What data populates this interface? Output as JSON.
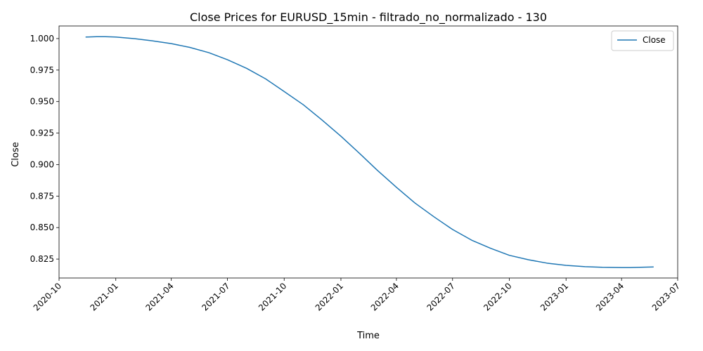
{
  "chart_data": {
    "type": "line",
    "title": "Close Prices for EURUSD_15min - filtrado_no_normalizado - 130",
    "xlabel": "Time",
    "ylabel": "Close",
    "xlim": [
      "2020-10-01",
      "2023-07-01"
    ],
    "ylim": [
      0.81,
      1.01
    ],
    "x_ticks": [
      "2020-10",
      "2021-01",
      "2021-04",
      "2021-07",
      "2021-10",
      "2022-01",
      "2022-04",
      "2022-07",
      "2022-10",
      "2023-01",
      "2023-04",
      "2023-07"
    ],
    "y_ticks": [
      "0.825",
      "0.850",
      "0.875",
      "0.900",
      "0.925",
      "0.950",
      "0.975",
      "1.000"
    ],
    "legend_position": "top-right",
    "grid": false,
    "series": [
      {
        "name": "Close",
        "color": "#1f77b4",
        "x": [
          "2020-11-13",
          "2020-12-01",
          "2020-12-15",
          "2021-01-01",
          "2021-02-01",
          "2021-03-01",
          "2021-04-01",
          "2021-05-01",
          "2021-06-01",
          "2021-07-01",
          "2021-08-01",
          "2021-09-01",
          "2021-10-01",
          "2021-11-01",
          "2021-12-01",
          "2022-01-01",
          "2022-02-01",
          "2022-03-01",
          "2022-04-01",
          "2022-05-01",
          "2022-06-01",
          "2022-07-01",
          "2022-08-01",
          "2022-09-01",
          "2022-10-01",
          "2022-11-01",
          "2022-12-01",
          "2023-01-01",
          "2023-02-01",
          "2023-03-01",
          "2023-04-01",
          "2023-04-15",
          "2023-05-01",
          "2023-05-23"
        ],
        "y": [
          1.0012,
          1.0015,
          1.0015,
          1.0012,
          0.9999,
          0.9982,
          0.996,
          0.993,
          0.9888,
          0.9832,
          0.9764,
          0.968,
          0.958,
          0.9475,
          0.9355,
          0.9225,
          0.9085,
          0.8955,
          0.882,
          0.8695,
          0.8585,
          0.8485,
          0.84,
          0.8335,
          0.828,
          0.8245,
          0.8218,
          0.82,
          0.819,
          0.8185,
          0.8183,
          0.8183,
          0.8185,
          0.8188
        ]
      }
    ]
  }
}
